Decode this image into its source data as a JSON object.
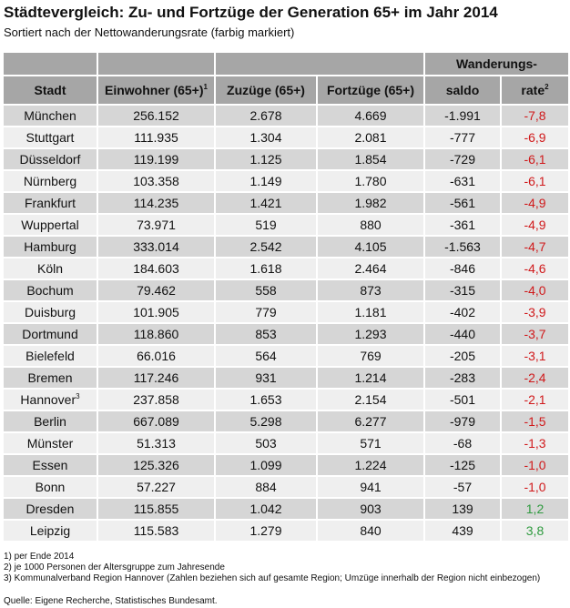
{
  "title": "Städtevergleich: Zu- und Fortzüge der Generation 65+ im Jahr 2014",
  "subtitle": "Sortiert nach der Nettowanderungsrate (farbig markiert)",
  "header": {
    "group": "Wanderungs-",
    "stadt": "Stadt",
    "einwohner": "Einwohner (65+)",
    "einwohner_sup": "1",
    "zuzuege": "Zuzüge (65+)",
    "fortzuege": "Fortzüge (65+)",
    "saldo": "saldo",
    "rate": "rate",
    "rate_sup": "2"
  },
  "colors": {
    "negative": "#d0191b",
    "positive": "#2e9a3e"
  },
  "rows": [
    {
      "stadt": "München",
      "einwohner": "256.152",
      "zuzuege": "2.678",
      "fortzuege": "4.669",
      "saldo": "-1.991",
      "rate": "-7,8"
    },
    {
      "stadt": "Stuttgart",
      "einwohner": "111.935",
      "zuzuege": "1.304",
      "fortzuege": "2.081",
      "saldo": "-777",
      "rate": "-6,9"
    },
    {
      "stadt": "Düsseldorf",
      "einwohner": "119.199",
      "zuzuege": "1.125",
      "fortzuege": "1.854",
      "saldo": "-729",
      "rate": "-6,1"
    },
    {
      "stadt": "Nürnberg",
      "einwohner": "103.358",
      "zuzuege": "1.149",
      "fortzuege": "1.780",
      "saldo": "-631",
      "rate": "-6,1"
    },
    {
      "stadt": "Frankfurt",
      "einwohner": "114.235",
      "zuzuege": "1.421",
      "fortzuege": "1.982",
      "saldo": "-561",
      "rate": "-4,9"
    },
    {
      "stadt": "Wuppertal",
      "einwohner": "73.971",
      "zuzuege": "519",
      "fortzuege": "880",
      "saldo": "-361",
      "rate": "-4,9"
    },
    {
      "stadt": "Hamburg",
      "einwohner": "333.014",
      "zuzuege": "2.542",
      "fortzuege": "4.105",
      "saldo": "-1.563",
      "rate": "-4,7"
    },
    {
      "stadt": "Köln",
      "einwohner": "184.603",
      "zuzuege": "1.618",
      "fortzuege": "2.464",
      "saldo": "-846",
      "rate": "-4,6"
    },
    {
      "stadt": "Bochum",
      "einwohner": "79.462",
      "zuzuege": "558",
      "fortzuege": "873",
      "saldo": "-315",
      "rate": "-4,0"
    },
    {
      "stadt": "Duisburg",
      "einwohner": "101.905",
      "zuzuege": "779",
      "fortzuege": "1.181",
      "saldo": "-402",
      "rate": "-3,9"
    },
    {
      "stadt": "Dortmund",
      "einwohner": "118.860",
      "zuzuege": "853",
      "fortzuege": "1.293",
      "saldo": "-440",
      "rate": "-3,7"
    },
    {
      "stadt": "Bielefeld",
      "einwohner": "66.016",
      "zuzuege": "564",
      "fortzuege": "769",
      "saldo": "-205",
      "rate": "-3,1"
    },
    {
      "stadt": "Bremen",
      "einwohner": "117.246",
      "zuzuege": "931",
      "fortzuege": "1.214",
      "saldo": "-283",
      "rate": "-2,4"
    },
    {
      "stadt": "Hannover",
      "stadt_sup": "3",
      "einwohner": "237.858",
      "zuzuege": "1.653",
      "fortzuege": "2.154",
      "saldo": "-501",
      "rate": "-2,1"
    },
    {
      "stadt": "Berlin",
      "einwohner": "667.089",
      "zuzuege": "5.298",
      "fortzuege": "6.277",
      "saldo": "-979",
      "rate": "-1,5"
    },
    {
      "stadt": "Münster",
      "einwohner": "51.313",
      "zuzuege": "503",
      "fortzuege": "571",
      "saldo": "-68",
      "rate": "-1,3"
    },
    {
      "stadt": "Essen",
      "einwohner": "125.326",
      "zuzuege": "1.099",
      "fortzuege": "1.224",
      "saldo": "-125",
      "rate": "-1,0"
    },
    {
      "stadt": "Bonn",
      "einwohner": "57.227",
      "zuzuege": "884",
      "fortzuege": "941",
      "saldo": "-57",
      "rate": "-1,0"
    },
    {
      "stadt": "Dresden",
      "einwohner": "115.855",
      "zuzuege": "1.042",
      "fortzuege": "903",
      "saldo": "139",
      "rate": "1,2"
    },
    {
      "stadt": "Leipzig",
      "einwohner": "115.583",
      "zuzuege": "1.279",
      "fortzuege": "840",
      "saldo": "439",
      "rate": "3,8"
    }
  ],
  "notes": [
    "1) per Ende 2014",
    "2) je 1000 Personen der Altersgruppe zum Jahresende",
    "3) Kommunalverband Region Hannover (Zahlen beziehen sich auf gesamte Region; Umzüge innerhalb der Region nicht einbezogen)"
  ],
  "source": "Quelle: Eigene Recherche, Statistisches Bundesamt."
}
